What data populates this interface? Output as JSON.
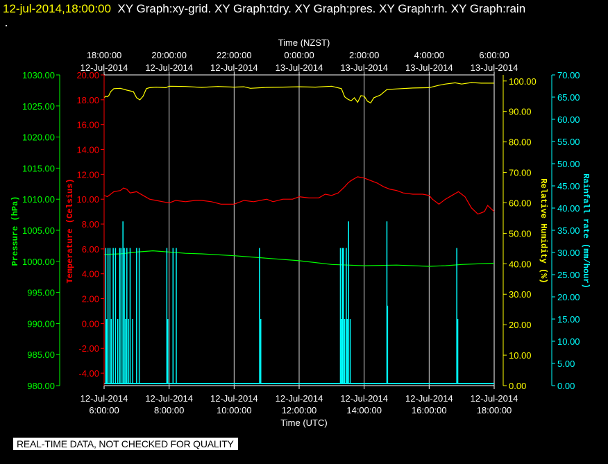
{
  "header": {
    "date": "12-jul-2014,18:00:00",
    "titles": "XY Graph:xy-grid.  XY Graph:tdry.  XY Graph:pres.  XY Graph:rh.  XY Graph:rain"
  },
  "footer": {
    "notice": "REAL-TIME DATA, NOT CHECKED FOR QUALITY"
  },
  "colors": {
    "pressure": "#00ff00",
    "temperature": "#ff0000",
    "humidity": "#ffff00",
    "rain": "#00ffff",
    "grid": "#ffffff",
    "background": "#000000"
  },
  "chart_data": {
    "type": "line",
    "top_axis": {
      "label": "Time (NZST)",
      "ticks": [
        {
          "time": "18:00:00",
          "date": "12-Jul-2014"
        },
        {
          "time": "20:00:00",
          "date": "12-Jul-2014"
        },
        {
          "time": "22:00:00",
          "date": "12-Jul-2014"
        },
        {
          "time": "0:00:00",
          "date": "13-Jul-2014"
        },
        {
          "time": "2:00:00",
          "date": "13-Jul-2014"
        },
        {
          "time": "4:00:00",
          "date": "13-Jul-2014"
        },
        {
          "time": "6:00:00",
          "date": "13-Jul-2014"
        }
      ]
    },
    "bottom_axis": {
      "label": "Time (UTC)",
      "ticks": [
        {
          "date": "12-Jul-2014",
          "time": "6:00:00"
        },
        {
          "date": "12-Jul-2014",
          "time": "8:00:00"
        },
        {
          "date": "12-Jul-2014",
          "time": "10:00:00"
        },
        {
          "date": "12-Jul-2014",
          "time": "12:00:00"
        },
        {
          "date": "12-Jul-2014",
          "time": "14:00:00"
        },
        {
          "date": "12-Jul-2014",
          "time": "16:00:00"
        },
        {
          "date": "12-Jul-2014",
          "time": "18:00:00"
        }
      ],
      "range_hours": [
        6,
        18
      ]
    },
    "axes": {
      "pressure": {
        "label": "Pressure (hPa)",
        "ylim": [
          980,
          1030
        ],
        "ticks": [
          "1030.00",
          "1025.00",
          "1020.00",
          "1015.00",
          "1010.00",
          "1005.00",
          "1000.00",
          "995.00",
          "990.00",
          "985.00",
          "980.00"
        ]
      },
      "temperature": {
        "label": "Temperature (Celsius)",
        "ylim": [
          -5,
          20
        ],
        "ticks": [
          "20.00",
          "18.00",
          "16.00",
          "14.00",
          "12.00",
          "10.00",
          "8.00",
          "6.00",
          "4.00",
          "2.00",
          "0.00",
          "-2.00",
          "-4.00"
        ]
      },
      "humidity": {
        "label": "Relative Humidity (%)",
        "ylim": [
          0,
          102
        ],
        "ticks": [
          "100.00",
          "90.00",
          "80.00",
          "70.00",
          "60.00",
          "50.00",
          "40.00",
          "30.00",
          "20.00",
          "10.00",
          "0.00"
        ]
      },
      "rain": {
        "label": "Rainfall rate (mm/hour)",
        "ylim": [
          0,
          70
        ],
        "ticks": [
          "70.00",
          "65.00",
          "60.00",
          "55.00",
          "50.00",
          "45.00",
          "40.00",
          "35.00",
          "30.00",
          "25.00",
          "20.00",
          "15.00",
          "10.00",
          "5.00",
          "0.00"
        ]
      }
    },
    "series": [
      {
        "axis": "humidity",
        "x": [
          6.0,
          6.05,
          6.1,
          6.15,
          6.2,
          6.3,
          6.5,
          6.7,
          6.9,
          7.0,
          7.1,
          7.2,
          7.3,
          7.4,
          7.6,
          7.9,
          8.0,
          8.5,
          9.0,
          9.5,
          10.0,
          10.3,
          10.5,
          11.0,
          11.5,
          12.0,
          12.5,
          13.0,
          13.3,
          13.4,
          13.5,
          13.6,
          13.7,
          13.8,
          13.9,
          14.0,
          14.1,
          14.2,
          14.3,
          14.5,
          14.7,
          15.0,
          15.5,
          16.0,
          16.3,
          16.5,
          16.8,
          17.0,
          17.3,
          17.6,
          18.0
        ],
        "values": [
          94.5,
          95.0,
          94.8,
          95.3,
          96.5,
          97.5,
          97.6,
          97.0,
          96.5,
          94.5,
          93.8,
          95.0,
          97.5,
          97.8,
          98.0,
          97.8,
          98.3,
          98.2,
          97.9,
          98.2,
          98.0,
          98.1,
          97.6,
          97.9,
          98.0,
          98.1,
          98.0,
          98.3,
          97.5,
          94.8,
          94.0,
          93.5,
          94.5,
          93.0,
          95.2,
          95.0,
          93.4,
          92.8,
          94.5,
          95.4,
          97.2,
          97.4,
          97.7,
          97.8,
          98.6,
          99.0,
          99.4,
          99.0,
          99.5,
          99.3,
          99.3
        ]
      },
      {
        "axis": "temperature",
        "x": [
          6.0,
          6.1,
          6.3,
          6.5,
          6.6,
          6.7,
          6.8,
          7.0,
          7.2,
          7.4,
          7.6,
          7.8,
          8.0,
          8.2,
          8.5,
          8.8,
          9.0,
          9.3,
          9.6,
          10.0,
          10.3,
          10.6,
          11.0,
          11.2,
          11.5,
          11.8,
          12.0,
          12.3,
          12.6,
          12.8,
          13.0,
          13.2,
          13.4,
          13.5,
          13.6,
          13.8,
          14.0,
          14.2,
          14.4,
          14.6,
          14.8,
          15.0,
          15.2,
          15.5,
          15.8,
          16.0,
          16.1,
          16.3,
          16.5,
          16.7,
          16.9,
          17.1,
          17.3,
          17.5,
          17.7,
          17.8,
          18.0
        ],
        "values": [
          10.3,
          10.2,
          10.6,
          10.7,
          10.9,
          10.8,
          10.5,
          10.6,
          10.3,
          10.0,
          9.9,
          9.8,
          9.7,
          9.9,
          9.8,
          9.9,
          9.9,
          9.8,
          9.6,
          9.6,
          9.9,
          9.8,
          10.0,
          9.8,
          10.0,
          10.0,
          10.2,
          10.1,
          10.1,
          10.4,
          10.3,
          10.5,
          11.0,
          11.3,
          11.5,
          11.8,
          11.7,
          11.5,
          11.3,
          11.0,
          10.8,
          10.7,
          10.5,
          10.4,
          10.4,
          10.3,
          10.0,
          9.6,
          10.0,
          10.3,
          10.6,
          10.2,
          9.3,
          8.8,
          9.0,
          9.5,
          9.0
        ]
      },
      {
        "axis": "pressure",
        "x": [
          6.0,
          6.5,
          7.0,
          7.5,
          8.0,
          8.5,
          9.0,
          10.0,
          11.0,
          12.0,
          13.0,
          13.5,
          14.0,
          15.0,
          16.0,
          16.5,
          17.0,
          18.0
        ],
        "values": [
          1001.1,
          1001.2,
          1001.5,
          1001.7,
          1001.5,
          1001.3,
          1001.2,
          1000.9,
          1000.5,
          1000.1,
          999.5,
          999.4,
          999.3,
          999.4,
          999.2,
          999.3,
          999.5,
          999.7
        ]
      },
      {
        "axis": "rain",
        "spikes": [
          {
            "x": 6.05,
            "v": 31
          },
          {
            "x": 6.08,
            "v": 15
          },
          {
            "x": 6.12,
            "v": 31
          },
          {
            "x": 6.18,
            "v": 31
          },
          {
            "x": 6.22,
            "v": 15
          },
          {
            "x": 6.28,
            "v": 31
          },
          {
            "x": 6.35,
            "v": 31
          },
          {
            "x": 6.42,
            "v": 15
          },
          {
            "x": 6.48,
            "v": 31
          },
          {
            "x": 6.52,
            "v": 31
          },
          {
            "x": 6.58,
            "v": 37
          },
          {
            "x": 6.62,
            "v": 31
          },
          {
            "x": 6.66,
            "v": 15
          },
          {
            "x": 6.7,
            "v": 31
          },
          {
            "x": 6.75,
            "v": 15
          },
          {
            "x": 6.8,
            "v": 31
          },
          {
            "x": 6.88,
            "v": 15
          },
          {
            "x": 7.0,
            "v": 31
          },
          {
            "x": 7.08,
            "v": 31
          },
          {
            "x": 7.93,
            "v": 31
          },
          {
            "x": 7.96,
            "v": 15
          },
          {
            "x": 8.12,
            "v": 31
          },
          {
            "x": 8.22,
            "v": 31
          },
          {
            "x": 10.78,
            "v": 31
          },
          {
            "x": 10.82,
            "v": 15
          },
          {
            "x": 13.27,
            "v": 31
          },
          {
            "x": 13.3,
            "v": 15
          },
          {
            "x": 13.33,
            "v": 31
          },
          {
            "x": 13.36,
            "v": 31
          },
          {
            "x": 13.4,
            "v": 15
          },
          {
            "x": 13.45,
            "v": 31
          },
          {
            "x": 13.48,
            "v": 15
          },
          {
            "x": 13.52,
            "v": 37
          },
          {
            "x": 13.57,
            "v": 15
          },
          {
            "x": 14.7,
            "v": 37
          },
          {
            "x": 14.72,
            "v": 18
          },
          {
            "x": 16.85,
            "v": 31
          },
          {
            "x": 16.88,
            "v": 15
          }
        ]
      }
    ],
    "grid": true
  }
}
